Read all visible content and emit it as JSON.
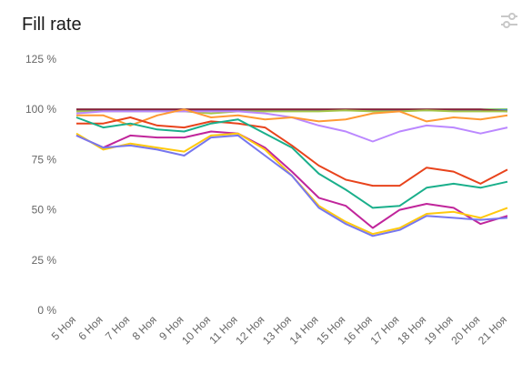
{
  "header": {
    "title": "Fill rate",
    "settings_icon": "sliders-icon"
  },
  "chart_data": {
    "type": "line",
    "title": "Fill rate",
    "xlabel": "",
    "ylabel": "",
    "ylim": [
      0,
      125
    ],
    "y_ticks": [
      0,
      25,
      50,
      75,
      100,
      125
    ],
    "y_tick_labels": [
      "0 %",
      "25 %",
      "50 %",
      "75 %",
      "100 %",
      "125 %"
    ],
    "grid": false,
    "legend": "none",
    "categories": [
      "5 Ноя",
      "6 Ноя",
      "7 Ноя",
      "8 Ноя",
      "9 Ноя",
      "10 Ноя",
      "11 Ноя",
      "12 Ноя",
      "13 Ноя",
      "14 Ноя",
      "15 Ноя",
      "16 Ноя",
      "17 Ноя",
      "18 Ноя",
      "19 Ноя",
      "20 Ноя",
      "21 Ноя"
    ],
    "series": [
      {
        "color": "#66bb44",
        "values": [
          100,
          100,
          100,
          100,
          100,
          100,
          100,
          100,
          100,
          100,
          100,
          100,
          100,
          100,
          100,
          100,
          100
        ]
      },
      {
        "color": "#4477ee",
        "values": [
          99.5,
          99.5,
          99.5,
          99.5,
          99.5,
          99.5,
          99.5,
          99.5,
          99.5,
          99.5,
          99.5,
          99.5,
          99.5,
          99.5,
          99.5,
          99.5,
          99.5
        ]
      },
      {
        "color": "#8b1e3f",
        "values": [
          100,
          100,
          100,
          100,
          100,
          100,
          100,
          100,
          100,
          100,
          100,
          100,
          100,
          100,
          100,
          100,
          99
        ]
      },
      {
        "color": "#a5c84a",
        "values": [
          99,
          99,
          99,
          99,
          99,
          98,
          99,
          99,
          99,
          99,
          99.5,
          99,
          99,
          99.5,
          99,
          99,
          99
        ]
      },
      {
        "color": "#bb88ff",
        "values": [
          98,
          99,
          99,
          99,
          99,
          99,
          99,
          98,
          96,
          92,
          89,
          84,
          89,
          92,
          91,
          88,
          91
        ]
      },
      {
        "color": "#ff9933",
        "values": [
          97,
          97,
          92,
          97,
          100,
          96,
          97,
          95,
          96,
          94,
          95,
          98,
          99,
          94,
          96,
          95,
          97
        ]
      },
      {
        "color": "#e8431c",
        "values": [
          93,
          93,
          96,
          92,
          91,
          94,
          93,
          91,
          82,
          72,
          65,
          62,
          62,
          71,
          69,
          63,
          70
        ]
      },
      {
        "color": "#1aaf8b",
        "values": [
          96,
          91,
          93,
          90,
          89,
          93,
          95,
          88,
          81,
          68,
          60,
          51,
          52,
          61,
          63,
          61,
          64
        ]
      },
      {
        "color": "#c0259b",
        "values": [
          87,
          81,
          87,
          86,
          86,
          89,
          88,
          81,
          69,
          56,
          52,
          41,
          50,
          53,
          51,
          43,
          47
        ]
      },
      {
        "color": "#ffc90e",
        "values": [
          88,
          80,
          83,
          81,
          79,
          87,
          88,
          80,
          67,
          52,
          44,
          38,
          41,
          48,
          49,
          46,
          51
        ]
      },
      {
        "color": "#7777ee",
        "values": [
          87,
          81,
          82,
          80,
          77,
          86,
          87,
          77,
          67,
          51,
          43,
          37,
          40,
          47,
          46,
          45,
          46
        ]
      }
    ]
  }
}
